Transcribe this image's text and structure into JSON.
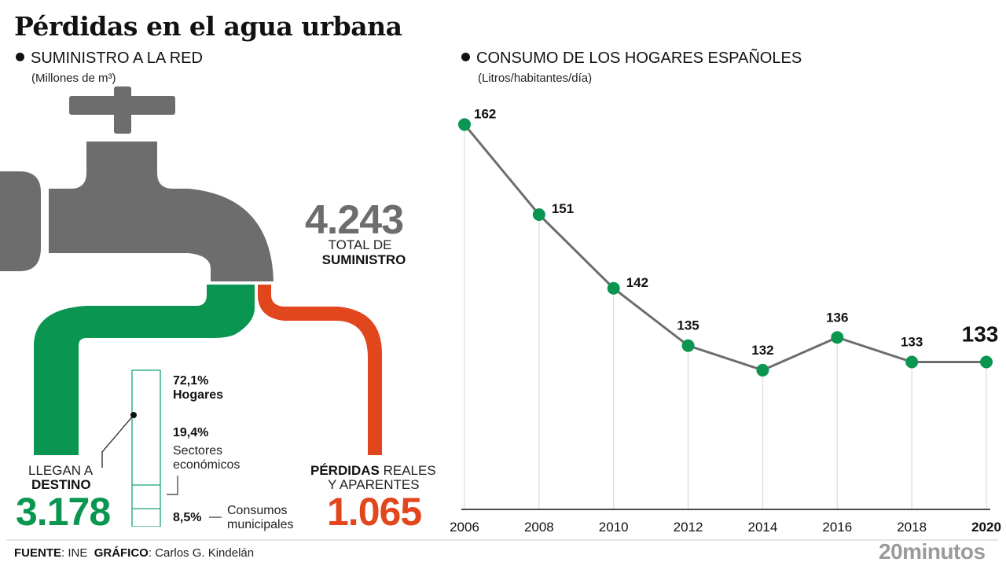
{
  "title": "Pérdidas en el agua urbana",
  "left_section": {
    "heading": "SUMINISTRO A LA RED",
    "unit": "(Millones de m³)",
    "total": {
      "value": "4.243",
      "label_line1": "TOTAL DE",
      "label_line2": "SUMINISTRO"
    },
    "destination": {
      "value": "3.178",
      "label_line1": "LLEGAN A",
      "label_line2": "DESTINO"
    },
    "losses": {
      "value": "1.065",
      "label_bold": "PÉRDIDAS",
      "label_rest": " REALES",
      "label_line2": "Y APARENTES"
    },
    "breakdown": [
      {
        "percent": "72,1%",
        "label": "Hogares",
        "share": 72.1
      },
      {
        "percent": "19,4%",
        "label_line1": "Sectores",
        "label_line2": "económicos",
        "share": 19.4
      },
      {
        "percent": "8,5%",
        "label_line1": "Consumos",
        "label_line2": "municipales",
        "share": 8.5
      }
    ],
    "colors": {
      "tap": "#6d6d6d",
      "destination": "#0a9651",
      "losses": "#e2461c"
    }
  },
  "chart_data": {
    "type": "line",
    "title": "CONSUMO DE LOS HOGARES ESPAÑOLES",
    "subtitle": "(Litros/habitantes/día)",
    "xlabel": "",
    "ylabel": "Litros/habitantes/día",
    "x": [
      "2006",
      "2008",
      "2010",
      "2012",
      "2014",
      "2016",
      "2018",
      "2020"
    ],
    "series": [
      {
        "name": "Consumo",
        "values": [
          162,
          151,
          142,
          135,
          132,
          136,
          133,
          133
        ]
      }
    ],
    "ylim": [
      115,
      163
    ],
    "grid": "vertical-drop-lines",
    "legend": "none",
    "colors": {
      "line": "#6d6d6d",
      "marker": "#0a9651"
    }
  },
  "footer": {
    "source_label": "FUENTE",
    "source_value": ": INE",
    "graphic_label": "GRÁFICO",
    "graphic_value": ": Carlos G. Kindelán",
    "brand": "20minutos"
  }
}
